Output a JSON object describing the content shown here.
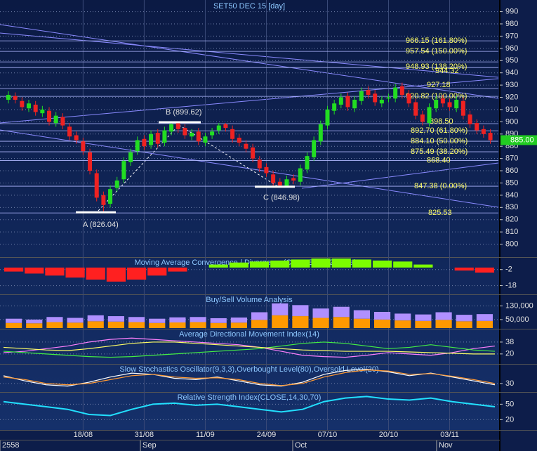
{
  "chart_data": [
    {
      "type": "candlestick",
      "title": "SET50 DEC 15   [day]",
      "categories": [
        null,
        null,
        null,
        null,
        null,
        null,
        null,
        null,
        null,
        null,
        null,
        "18/08",
        null,
        null,
        null,
        null,
        null,
        null,
        null,
        null,
        "31/08",
        null,
        null,
        null,
        null,
        null,
        null,
        null,
        null,
        "11/09",
        null,
        null,
        null,
        null,
        null,
        null,
        null,
        null,
        "24/09",
        null,
        null,
        null,
        null,
        null,
        null,
        null,
        null,
        "07/10",
        null,
        null,
        null,
        null,
        null,
        null,
        null,
        null,
        "20/10",
        null,
        null,
        null,
        null,
        null,
        null,
        null,
        null,
        "03/11",
        null,
        null,
        null,
        null,
        null,
        null
      ],
      "open": [
        918,
        921,
        917,
        911,
        914,
        907,
        909,
        899,
        904,
        896,
        889,
        884,
        875,
        858,
        840,
        833,
        846,
        853,
        867,
        876,
        886,
        881,
        891,
        883,
        892,
        899,
        895,
        888,
        892,
        883,
        889,
        893,
        898,
        894,
        887,
        882,
        879,
        869,
        863,
        857,
        851,
        847,
        854,
        851,
        861,
        871,
        884,
        897,
        909,
        914,
        921,
        911,
        917,
        926,
        923,
        915,
        919,
        919,
        929,
        923,
        916,
        906,
        899,
        911,
        919,
        916,
        911,
        917,
        906,
        899,
        894,
        891
      ],
      "high": [
        925,
        924,
        920,
        918,
        917,
        913,
        912,
        908,
        907,
        899,
        892,
        887,
        878,
        861,
        843,
        848,
        855,
        871,
        878,
        888,
        889,
        893,
        894,
        896,
        899.62,
        899,
        898,
        894,
        895,
        891,
        895,
        899,
        899,
        897,
        890,
        885,
        882,
        872,
        866,
        860,
        854,
        856,
        857,
        865,
        875,
        888,
        901,
        913,
        918,
        923,
        924,
        921,
        928,
        929,
        926,
        921,
        923,
        931,
        932,
        926,
        919,
        909,
        915,
        921,
        922,
        919,
        921,
        920,
        909,
        902,
        897,
        894
      ],
      "low": [
        915,
        915,
        909,
        908,
        905,
        904,
        897,
        896,
        894,
        885,
        882,
        873,
        857,
        835,
        826.04,
        830,
        843,
        850,
        864,
        873,
        877,
        878,
        879,
        880,
        889,
        891,
        886,
        885,
        881,
        880,
        886,
        890,
        892,
        883,
        880,
        875,
        867,
        859,
        855,
        847.5,
        846.98,
        847.2,
        849,
        848,
        858,
        868,
        881,
        894,
        906,
        911,
        909,
        908,
        914,
        919,
        913,
        912,
        916,
        916,
        919,
        912,
        902,
        897,
        896,
        908,
        912,
        909,
        908,
        902,
        895,
        890,
        887,
        882
      ],
      "close": [
        922,
        918,
        912,
        915,
        908,
        910,
        900,
        905,
        897,
        888,
        885,
        876,
        860,
        838,
        832,
        845,
        852,
        868,
        875,
        885,
        880,
        890,
        882,
        893,
        898,
        894,
        889,
        891,
        884,
        888,
        892,
        897,
        895,
        886,
        883,
        878,
        870,
        862,
        858,
        850,
        848,
        853,
        852,
        862,
        872,
        885,
        898,
        910,
        915,
        920,
        912,
        918,
        925,
        922,
        916,
        918,
        920,
        928,
        922,
        915,
        905,
        900,
        912,
        918,
        915,
        912,
        918,
        905,
        898,
        893,
        890,
        885
      ],
      "up_color": "#22dd22",
      "down_color": "#ee2222",
      "ylim": [
        790,
        997.8
      ],
      "yticks": [
        800,
        810,
        820,
        830,
        840,
        850,
        860,
        870,
        880,
        890,
        900,
        910,
        920,
        930,
        940,
        950,
        960,
        970,
        980,
        990
      ],
      "levels": [
        {
          "value": 966.15,
          "label": "966.15 (161.80%)"
        },
        {
          "value": 957.54,
          "label": "957.54 (150.00%)"
        },
        {
          "value": 944.32,
          "label": "944.32"
        },
        {
          "value": 948.93,
          "label": "948.93 (138.20%)"
        },
        {
          "value": 927.18,
          "label": "927.18"
        },
        {
          "value": 920.82,
          "label": "920.82 (100.00%)"
        },
        {
          "value": 898.5,
          "label": "898.50"
        },
        {
          "value": 892.7,
          "label": "892.70 (61.80%)"
        },
        {
          "value": 884.1,
          "label": "884.10 (50.00%)"
        },
        {
          "value": 868.4,
          "label": "868.40"
        },
        {
          "value": 875.49,
          "label": "875.49 (38.20%)"
        },
        {
          "value": 847.38,
          "label": "847.38 (0.00%)"
        },
        {
          "value": 825.53,
          "label": "825.53"
        }
      ],
      "annotations": [
        {
          "value": 826.04,
          "label": "A (826.04)"
        },
        {
          "value": 899.62,
          "label": "B (899.62)"
        },
        {
          "value": 846.98,
          "label": "C (846.98)"
        }
      ],
      "last_price": {
        "value": 885,
        "label": "885.00"
      },
      "months": [
        "2558",
        "Sep",
        "Oct",
        "Nov"
      ]
    },
    {
      "type": "bar",
      "title": "Moving Average Convergence / Divergence(CLOSE,26,12,9) Value",
      "values": [
        -4,
        -6,
        -8,
        -10,
        -12,
        -14,
        -12,
        -8,
        -4,
        0,
        3,
        5,
        6,
        7,
        8,
        9,
        9,
        8,
        7,
        6,
        3,
        0,
        -3,
        -5
      ],
      "up_color": "#7cfc00",
      "down_color": "#ff2020",
      "ylim": [
        -26,
        9
      ],
      "yticks": [
        -2,
        -18
      ]
    },
    {
      "type": "bar",
      "title": "Buy/Sell Volume Analysis",
      "series": [
        {
          "color": "#ff9900",
          "values": [
            30000,
            28000,
            35000,
            32000,
            40000,
            38000,
            35000,
            30000,
            33000,
            35000,
            30000,
            32000,
            48000,
            75000,
            70000,
            60000,
            65000,
            55000,
            50000,
            45000,
            42000,
            48000,
            40000,
            42000
          ]
        },
        {
          "color": "#b090ff",
          "values": [
            25000,
            22000,
            30000,
            28000,
            35000,
            32000,
            30000,
            25000,
            30000,
            30000,
            28000,
            30000,
            45000,
            70000,
            65000,
            55000,
            60000,
            50000,
            45000,
            40000,
            38000,
            45000,
            38000,
            40000
          ]
        }
      ],
      "ylim": [
        0,
        190000
      ],
      "yticks": [
        {
          "value": 130000,
          "label": "130,000"
        },
        {
          "value": 50000,
          "label": "50,000"
        }
      ]
    },
    {
      "type": "line",
      "title": "Average Directional Movement Index(14)",
      "series": [
        {
          "color": "#ff80ff",
          "values": [
            22,
            24,
            28,
            32,
            38,
            42,
            44,
            42,
            40,
            38,
            36,
            34,
            30,
            24,
            18,
            16,
            15,
            18,
            22,
            20,
            18,
            22,
            28,
            32
          ]
        },
        {
          "color": "#44ee44",
          "values": [
            24,
            22,
            20,
            18,
            16,
            15,
            16,
            18,
            20,
            22,
            24,
            26,
            28,
            32,
            36,
            38,
            36,
            32,
            28,
            30,
            34,
            30,
            26,
            24
          ]
        },
        {
          "color": "#ffff66",
          "values": [
            30,
            28,
            26,
            25,
            28,
            32,
            36,
            38,
            38,
            36,
            34,
            32,
            30,
            28,
            26,
            25,
            24,
            24,
            24,
            23,
            22,
            21,
            20,
            20
          ]
        }
      ],
      "ylim": [
        6,
        56
      ],
      "yticks": [
        38,
        20
      ]
    },
    {
      "type": "line",
      "title": "Slow Stochastics Oscillator(9,3,3),Overbought Level(80),Oversold Level(20)",
      "series": [
        {
          "color": "#ffffff",
          "values": [
            60,
            40,
            25,
            20,
            35,
            55,
            70,
            65,
            50,
            45,
            55,
            40,
            25,
            20,
            35,
            65,
            80,
            85,
            75,
            60,
            70,
            55,
            40,
            25
          ]
        },
        {
          "color": "#ff9933",
          "values": [
            55,
            45,
            30,
            25,
            30,
            45,
            60,
            65,
            55,
            50,
            52,
            45,
            30,
            22,
            30,
            55,
            72,
            82,
            78,
            65,
            68,
            58,
            45,
            30
          ]
        }
      ],
      "ylim": [
        0,
        100
      ],
      "yticks": [
        30
      ]
    },
    {
      "type": "line",
      "title": "Relative Strength Index(CLOSE,14,30,70)",
      "series": [
        {
          "color": "#22e0ff",
          "values": [
            55,
            50,
            45,
            40,
            30,
            28,
            40,
            50,
            52,
            48,
            50,
            45,
            40,
            35,
            40,
            55,
            62,
            65,
            60,
            58,
            62,
            55,
            50,
            45
          ]
        }
      ],
      "ylim": [
        0,
        71
      ],
      "yticks": [
        50,
        20
      ]
    }
  ]
}
